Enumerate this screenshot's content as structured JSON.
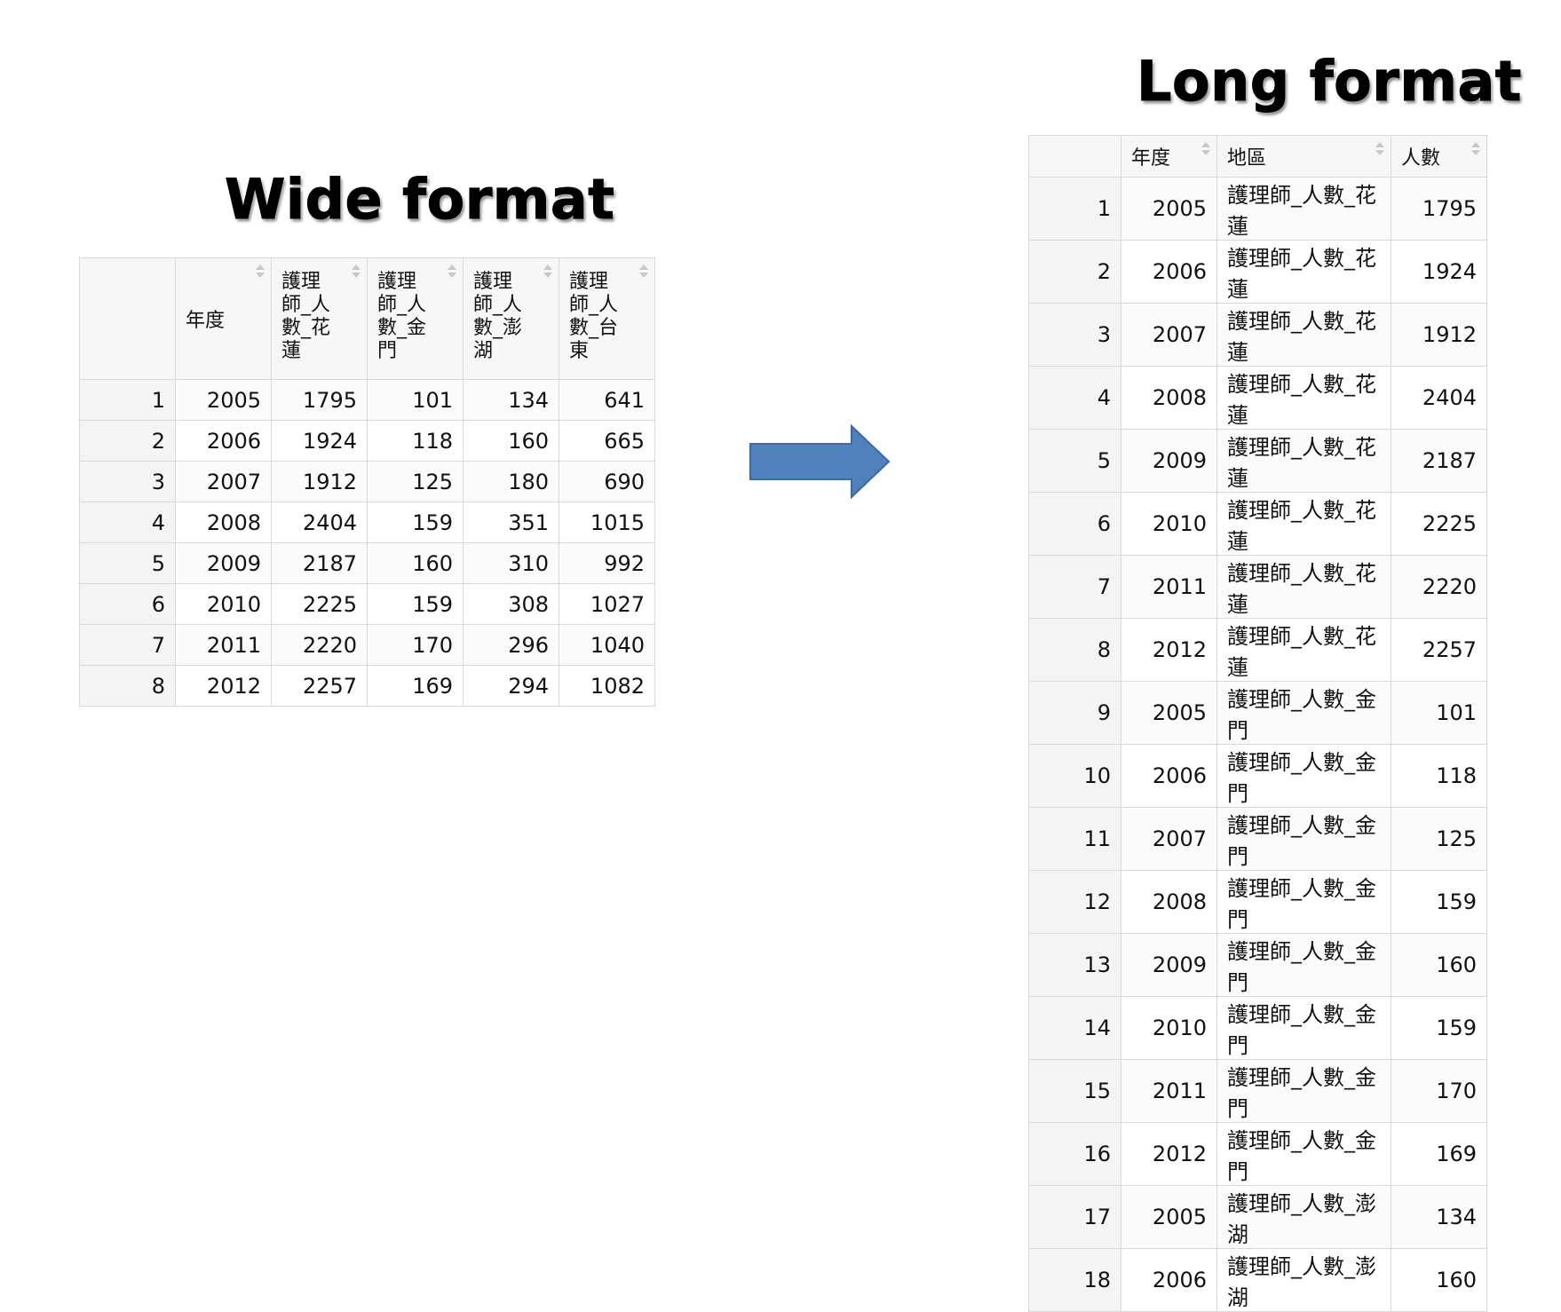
{
  "wide": {
    "title": "Wide format",
    "headers": [
      "",
      "年度",
      "護理\n師_人\n數_花\n蓮",
      "護理\n師_人\n數_金\n門",
      "護理\n師_人\n數_澎\n湖",
      "護理\n師_人\n數_台\n東"
    ],
    "rows": [
      [
        "1",
        "2005",
        "1795",
        "101",
        "134",
        "641"
      ],
      [
        "2",
        "2006",
        "1924",
        "118",
        "160",
        "665"
      ],
      [
        "3",
        "2007",
        "1912",
        "125",
        "180",
        "690"
      ],
      [
        "4",
        "2008",
        "2404",
        "159",
        "351",
        "1015"
      ],
      [
        "5",
        "2009",
        "2187",
        "160",
        "310",
        "992"
      ],
      [
        "6",
        "2010",
        "2225",
        "159",
        "308",
        "1027"
      ],
      [
        "7",
        "2011",
        "2220",
        "170",
        "296",
        "1040"
      ],
      [
        "8",
        "2012",
        "2257",
        "169",
        "294",
        "1082"
      ]
    ]
  },
  "long": {
    "title": "Long format",
    "headers": [
      "",
      "年度",
      "地區",
      "人數"
    ],
    "rows": [
      [
        "1",
        "2005",
        "護理師_人數_花蓮",
        "1795"
      ],
      [
        "2",
        "2006",
        "護理師_人數_花蓮",
        "1924"
      ],
      [
        "3",
        "2007",
        "護理師_人數_花蓮",
        "1912"
      ],
      [
        "4",
        "2008",
        "護理師_人數_花蓮",
        "2404"
      ],
      [
        "5",
        "2009",
        "護理師_人數_花蓮",
        "2187"
      ],
      [
        "6",
        "2010",
        "護理師_人數_花蓮",
        "2225"
      ],
      [
        "7",
        "2011",
        "護理師_人數_花蓮",
        "2220"
      ],
      [
        "8",
        "2012",
        "護理師_人數_花蓮",
        "2257"
      ],
      [
        "9",
        "2005",
        "護理師_人數_金門",
        "101"
      ],
      [
        "10",
        "2006",
        "護理師_人數_金門",
        "118"
      ],
      [
        "11",
        "2007",
        "護理師_人數_金門",
        "125"
      ],
      [
        "12",
        "2008",
        "護理師_人數_金門",
        "159"
      ],
      [
        "13",
        "2009",
        "護理師_人數_金門",
        "160"
      ],
      [
        "14",
        "2010",
        "護理師_人數_金門",
        "159"
      ],
      [
        "15",
        "2011",
        "護理師_人數_金門",
        "170"
      ],
      [
        "16",
        "2012",
        "護理師_人數_金門",
        "169"
      ],
      [
        "17",
        "2005",
        "護理師_人數_澎湖",
        "134"
      ],
      [
        "18",
        "2006",
        "護理師_人數_澎湖",
        "160"
      ]
    ]
  },
  "arrow": {
    "icon": "right-arrow-icon",
    "fill": "#4f81bd",
    "stroke": "#3a6a9e"
  }
}
